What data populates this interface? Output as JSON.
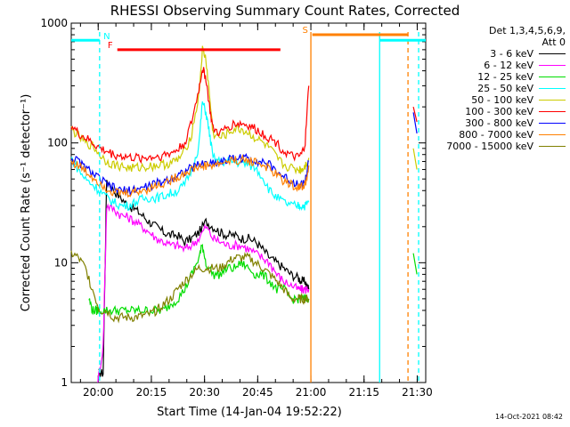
{
  "chart_data": {
    "type": "line",
    "title": "RHESSI Observing Summary Count Rates, Corrected",
    "xlabel": "Start Time (14-Jan-04 19:52:22)",
    "ylabel": "Corrected Count Rate (s⁻¹ detector⁻¹)",
    "x_unit": "minutes after 19:52:22",
    "xlim": [
      0,
      100
    ],
    "ylim": [
      1,
      1000
    ],
    "yscale": "log",
    "x_ticks": [
      {
        "v": 7.6,
        "label": "20:00"
      },
      {
        "v": 22.6,
        "label": "20:15"
      },
      {
        "v": 37.6,
        "label": "20:30"
      },
      {
        "v": 52.6,
        "label": "20:45"
      },
      {
        "v": 67.6,
        "label": "21:00"
      },
      {
        "v": 82.6,
        "label": "21:15"
      },
      {
        "v": 97.6,
        "label": "21:30"
      }
    ],
    "y_ticks": [
      {
        "v": 1,
        "label": "1"
      },
      {
        "v": 10,
        "label": "10"
      },
      {
        "v": 100,
        "label": "100"
      },
      {
        "v": 1000,
        "label": "1000"
      }
    ],
    "legend_header": [
      "Det 1,3,4,5,6,9,",
      "Att 0"
    ],
    "legend_position": "right",
    "series": [
      {
        "name": "3 - 6 keV",
        "color": "#000000",
        "x": [
          7.7,
          9,
          10,
          12,
          14,
          16,
          18,
          20,
          22,
          24,
          26,
          28,
          30,
          32,
          34,
          36,
          38,
          40,
          42,
          44,
          46,
          48,
          50,
          52,
          54,
          56,
          58,
          60,
          62,
          64,
          65,
          66,
          67
        ],
        "y": [
          1.2,
          1.2,
          50,
          40,
          35,
          30,
          28,
          25,
          22,
          20,
          18,
          17,
          17,
          15,
          16,
          18,
          22,
          20,
          18,
          17,
          17,
          16,
          16,
          15,
          13,
          11,
          10,
          9,
          8,
          7.5,
          7,
          7,
          6
        ]
      },
      {
        "name": "6 - 12 keV",
        "color": "#ff00ff",
        "x": [
          7.5,
          9,
          10,
          12,
          14,
          16,
          18,
          20,
          22,
          24,
          26,
          28,
          30,
          32,
          34,
          36,
          38,
          40,
          42,
          44,
          46,
          48,
          50,
          52,
          54,
          56,
          58,
          60,
          62,
          64,
          65,
          66,
          67
        ],
        "y": [
          1,
          2,
          30,
          28,
          25,
          24,
          22,
          20,
          18,
          16,
          15,
          14,
          14,
          13,
          14,
          16,
          20,
          16,
          15,
          14,
          14,
          14,
          13,
          12,
          11,
          10,
          8,
          7,
          6.5,
          6,
          6,
          6,
          6
        ]
      },
      {
        "name": "12 - 25 keV",
        "color": "#00dd00",
        "x": [
          5,
          6,
          7,
          8,
          10,
          12,
          14,
          16,
          18,
          20,
          22,
          24,
          26,
          28,
          30,
          32,
          34,
          36,
          37,
          38,
          40,
          42,
          44,
          46,
          48,
          50,
          52,
          54,
          56,
          58,
          60,
          62,
          64,
          65,
          66,
          67
        ],
        "y": [
          5,
          4,
          4,
          4,
          4,
          4,
          4,
          4,
          4,
          4,
          4,
          4,
          4,
          4.5,
          5,
          6,
          8,
          11,
          14,
          10,
          8,
          8,
          9,
          9,
          10,
          9,
          8,
          8,
          7,
          6,
          6,
          5,
          5,
          5,
          5,
          5
        ]
      },
      {
        "name": "25 - 50 keV",
        "color": "#00ffff",
        "x": [
          0,
          2,
          4,
          6,
          8,
          10,
          12,
          14,
          16,
          18,
          20,
          22,
          24,
          26,
          28,
          30,
          32,
          34,
          36,
          37,
          38,
          39,
          40,
          42,
          44,
          46,
          48,
          50,
          52,
          54,
          56,
          58,
          60,
          62,
          64,
          65,
          66,
          67
        ],
        "y": [
          75,
          60,
          50,
          45,
          40,
          35,
          32,
          30,
          30,
          32,
          34,
          35,
          35,
          36,
          38,
          40,
          45,
          60,
          95,
          220,
          180,
          120,
          75,
          70,
          70,
          70,
          68,
          66,
          62,
          52,
          40,
          35,
          32,
          30,
          30,
          30,
          30,
          32
        ]
      },
      {
        "name": "50 - 100 keV",
        "color": "#cccc00",
        "x": [
          0,
          2,
          4,
          6,
          8,
          10,
          12,
          14,
          16,
          18,
          20,
          22,
          24,
          26,
          28,
          30,
          32,
          34,
          36,
          37,
          38,
          39,
          40,
          42,
          44,
          46,
          48,
          50,
          52,
          54,
          56,
          58,
          60,
          62,
          64,
          65,
          66,
          67
        ],
        "y": [
          130,
          115,
          100,
          95,
          80,
          70,
          66,
          64,
          62,
          62,
          63,
          64,
          65,
          66,
          68,
          72,
          85,
          120,
          250,
          600,
          500,
          250,
          120,
          110,
          120,
          130,
          130,
          120,
          110,
          100,
          90,
          75,
          65,
          62,
          60,
          60,
          65,
          75
        ]
      },
      {
        "name": "100 - 300 keV",
        "color": "#ff0000",
        "x": [
          0,
          2,
          4,
          6,
          8,
          10,
          12,
          14,
          16,
          18,
          20,
          22,
          24,
          26,
          28,
          30,
          32,
          34,
          36,
          37,
          38,
          39,
          40,
          42,
          44,
          46,
          48,
          50,
          52,
          54,
          56,
          58,
          60,
          62,
          64,
          65,
          66,
          67
        ],
        "y": [
          140,
          120,
          110,
          100,
          90,
          85,
          80,
          78,
          76,
          75,
          75,
          76,
          77,
          79,
          82,
          88,
          100,
          150,
          280,
          420,
          350,
          200,
          130,
          120,
          135,
          145,
          145,
          140,
          130,
          120,
          110,
          100,
          85,
          78,
          75,
          80,
          100,
          300
        ]
      },
      {
        "name": "300 - 800 keV",
        "color": "#0000ff",
        "x": [
          0,
          2,
          4,
          6,
          8,
          10,
          12,
          14,
          16,
          18,
          20,
          22,
          24,
          26,
          28,
          30,
          32,
          34,
          36,
          38,
          40,
          42,
          44,
          46,
          48,
          50,
          52,
          54,
          56,
          58,
          60,
          62,
          64,
          65,
          66,
          67
        ],
        "y": [
          75,
          70,
          62,
          56,
          50,
          45,
          42,
          40,
          40,
          41,
          42,
          44,
          46,
          48,
          51,
          54,
          58,
          62,
          66,
          68,
          68,
          70,
          72,
          75,
          75,
          74,
          72,
          70,
          65,
          58,
          52,
          48,
          46,
          45,
          48,
          70
        ]
      },
      {
        "name": "800 - 7000 keV",
        "color": "#ff8000",
        "x": [
          0,
          2,
          4,
          6,
          8,
          10,
          12,
          14,
          16,
          18,
          20,
          22,
          24,
          26,
          28,
          30,
          32,
          34,
          36,
          38,
          40,
          42,
          44,
          46,
          48,
          50,
          52,
          54,
          56,
          58,
          60,
          62,
          64,
          65,
          66,
          67
        ],
        "y": [
          70,
          65,
          58,
          52,
          47,
          42,
          39,
          38,
          38,
          39,
          40,
          42,
          44,
          46,
          49,
          52,
          56,
          60,
          63,
          65,
          65,
          67,
          70,
          72,
          72,
          71,
          70,
          66,
          60,
          54,
          48,
          45,
          43,
          43,
          45,
          65
        ]
      },
      {
        "name": "7000 - 15000 keV",
        "color": "#808000",
        "x": [
          0,
          2,
          4,
          6,
          8,
          10,
          12,
          14,
          16,
          18,
          20,
          22,
          24,
          26,
          28,
          30,
          32,
          34,
          36,
          38,
          40,
          42,
          44,
          46,
          48,
          50,
          52,
          54,
          56,
          58,
          60,
          62,
          64,
          65,
          66,
          67
        ],
        "y": [
          12,
          11,
          9,
          6,
          4,
          4,
          3.5,
          3.5,
          3.5,
          3.5,
          3.6,
          3.7,
          4,
          4.5,
          5,
          6,
          7,
          8,
          9,
          9,
          9,
          9,
          10,
          11,
          11,
          11,
          10,
          9,
          8,
          7,
          6,
          5,
          5,
          5,
          5,
          5
        ]
      }
    ],
    "flag_bars": [
      {
        "label": "F",
        "color": "#ff0000",
        "x_start": 13,
        "x_end": 59,
        "y": 600
      },
      {
        "label": "N",
        "color": "#00ffff",
        "x_start": 0,
        "x_end": 8,
        "y": 720
      },
      {
        "label": "S",
        "color": "#ff8000",
        "x_start": 68,
        "x_end": 95,
        "y": 800
      },
      {
        "label": "",
        "color": "#00ffff",
        "x_start": 87,
        "x_end": 100,
        "y": 720
      }
    ],
    "vertical_markers": [
      {
        "x": 8,
        "color": "#00ffff",
        "style": "dashed"
      },
      {
        "x": 67.6,
        "color": "#ff8000",
        "style": "solid"
      },
      {
        "x": 87,
        "color": "#00ffff",
        "style": "solid"
      },
      {
        "x": 95,
        "color": "#ff8000",
        "style": "dashed"
      },
      {
        "x": 98,
        "color": "#00ffff",
        "style": "dashed"
      }
    ],
    "post_gap": [
      {
        "series": "100 - 300 keV",
        "x": [
          96.5,
          97.5
        ],
        "y": [
          200,
          150
        ]
      },
      {
        "series": "300 - 800 keV",
        "x": [
          96.5,
          97.5
        ],
        "y": [
          180,
          120
        ]
      },
      {
        "series": "50 - 100 keV",
        "x": [
          96.5,
          97.5
        ],
        "y": [
          90,
          60
        ]
      },
      {
        "series": "12 - 25 keV",
        "x": [
          96.5,
          97.5
        ],
        "y": [
          12,
          8
        ]
      }
    ],
    "timestamp": "14-Oct-2021 08:42"
  }
}
